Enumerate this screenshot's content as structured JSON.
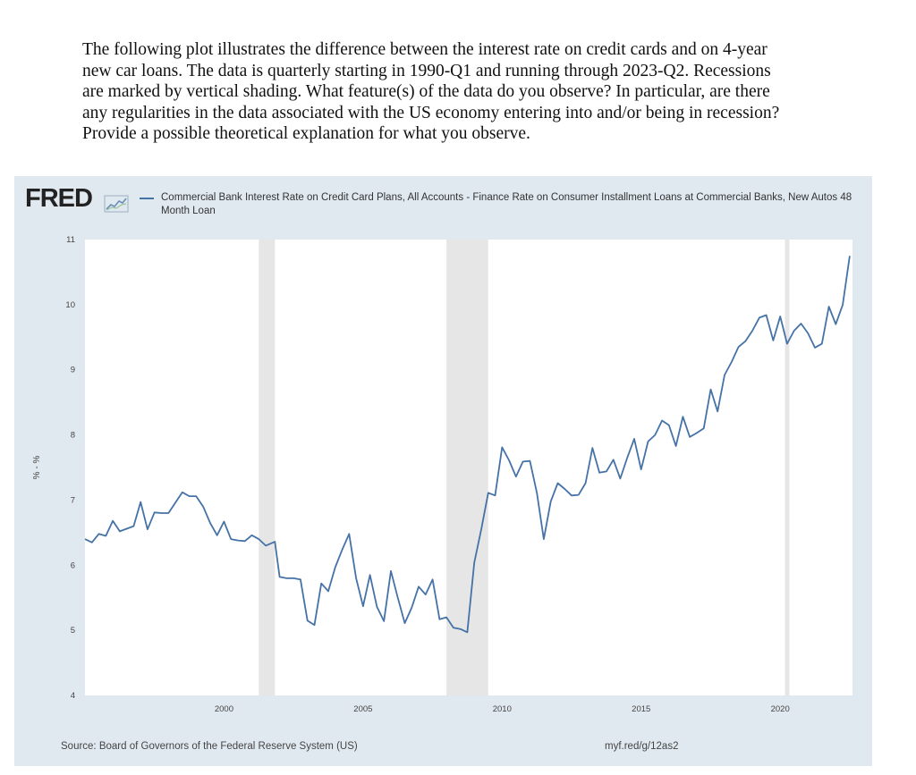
{
  "question": {
    "lines": [
      "The following plot illustrates the difference between the interest rate on credit cards and on 4-year",
      "new car loans.  The data is quarterly starting in 1990-Q1 and running through 2023-Q2.  Recessions",
      "are marked by vertical shading.  What feature(s) of the data do you observe?  In particular, are there",
      "any regularities in the data associated with the US economy entering into and/or being in recession?",
      "Provide a possible theoretical explanation for what you observe."
    ]
  },
  "fred": {
    "logo": "FRED",
    "legend": "Commercial Bank Interest Rate on Credit Card Plans, All Accounts - Finance Rate on Consumer Installment Loans at Commercial Banks, New Autos 48 Month Loan",
    "source": "Source: Board of Governors of the Federal Reserve System (US)",
    "link": "myf.red/g/12as2",
    "colors": {
      "line": "#4572a7",
      "panel": "#e1e9f0",
      "recession": "#e6e6e6",
      "plot_bg": "#ffffff"
    }
  },
  "chart_data": {
    "type": "line",
    "title": "",
    "xlabel": "",
    "ylabel": "% - %",
    "xlim": [
      1995.0,
      2022.6
    ],
    "ylim": [
      4,
      11
    ],
    "yticks": [
      4,
      5,
      6,
      7,
      8,
      9,
      10,
      11
    ],
    "xticks": [
      2000,
      2005,
      2010,
      2015,
      2020
    ],
    "grid": false,
    "legend_position": "top",
    "recessions": [
      [
        2001.25,
        2001.83
      ],
      [
        2008.0,
        2009.5
      ],
      [
        2020.17,
        2020.33
      ]
    ],
    "series": [
      {
        "name": "Commercial Bank Interest Rate on Credit Card Plans, All Accounts - Finance Rate on Consumer Installment Loans at Commercial Banks, New Autos 48 Month Loan",
        "points": [
          [
            1995.0,
            6.4
          ],
          [
            1995.25,
            6.35
          ],
          [
            1995.5,
            6.48
          ],
          [
            1995.75,
            6.45
          ],
          [
            1996.0,
            6.68
          ],
          [
            1996.25,
            6.52
          ],
          [
            1996.5,
            6.56
          ],
          [
            1996.75,
            6.6
          ],
          [
            1997.0,
            6.97
          ],
          [
            1997.25,
            6.55
          ],
          [
            1997.5,
            6.81
          ],
          [
            1997.75,
            6.8
          ],
          [
            1998.0,
            6.8
          ],
          [
            1998.5,
            7.12
          ],
          [
            1998.75,
            7.06
          ],
          [
            1999.0,
            7.06
          ],
          [
            1999.25,
            6.9
          ],
          [
            1999.5,
            6.65
          ],
          [
            1999.75,
            6.46
          ],
          [
            2000.0,
            6.67
          ],
          [
            2000.25,
            6.4
          ],
          [
            2000.5,
            6.38
          ],
          [
            2000.75,
            6.37
          ],
          [
            2001.0,
            6.46
          ],
          [
            2001.25,
            6.4
          ],
          [
            2001.5,
            6.3
          ],
          [
            2001.83,
            6.36
          ],
          [
            2002.0,
            5.82
          ],
          [
            2002.25,
            5.8
          ],
          [
            2002.5,
            5.8
          ],
          [
            2002.75,
            5.78
          ],
          [
            2003.0,
            5.15
          ],
          [
            2003.25,
            5.08
          ],
          [
            2003.5,
            5.72
          ],
          [
            2003.75,
            5.6
          ],
          [
            2004.0,
            5.97
          ],
          [
            2004.25,
            6.24
          ],
          [
            2004.5,
            6.48
          ],
          [
            2004.75,
            5.8
          ],
          [
            2005.0,
            5.37
          ],
          [
            2005.25,
            5.85
          ],
          [
            2005.5,
            5.36
          ],
          [
            2005.75,
            5.14
          ],
          [
            2006.0,
            5.91
          ],
          [
            2006.25,
            5.5
          ],
          [
            2006.5,
            5.11
          ],
          [
            2006.75,
            5.35
          ],
          [
            2007.0,
            5.67
          ],
          [
            2007.25,
            5.55
          ],
          [
            2007.5,
            5.78
          ],
          [
            2007.75,
            5.17
          ],
          [
            2008.0,
            5.2
          ],
          [
            2008.25,
            5.04
          ],
          [
            2008.5,
            5.02
          ],
          [
            2008.75,
            4.97
          ],
          [
            2009.0,
            6.04
          ],
          [
            2009.25,
            6.55
          ],
          [
            2009.5,
            7.11
          ],
          [
            2009.75,
            7.07
          ],
          [
            2010.0,
            7.81
          ],
          [
            2010.25,
            7.61
          ],
          [
            2010.5,
            7.36
          ],
          [
            2010.75,
            7.59
          ],
          [
            2011.0,
            7.6
          ],
          [
            2011.25,
            7.11
          ],
          [
            2011.5,
            6.4
          ],
          [
            2011.75,
            6.98
          ],
          [
            2012.0,
            7.26
          ],
          [
            2012.25,
            7.17
          ],
          [
            2012.5,
            7.07
          ],
          [
            2012.75,
            7.08
          ],
          [
            2013.0,
            7.26
          ],
          [
            2013.25,
            7.8
          ],
          [
            2013.5,
            7.42
          ],
          [
            2013.75,
            7.44
          ],
          [
            2014.0,
            7.62
          ],
          [
            2014.25,
            7.33
          ],
          [
            2014.5,
            7.65
          ],
          [
            2014.75,
            7.94
          ],
          [
            2015.0,
            7.47
          ],
          [
            2015.25,
            7.9
          ],
          [
            2015.5,
            8.0
          ],
          [
            2015.75,
            8.22
          ],
          [
            2016.0,
            8.15
          ],
          [
            2016.25,
            7.83
          ],
          [
            2016.5,
            8.28
          ],
          [
            2016.75,
            7.97
          ],
          [
            2017.0,
            8.03
          ],
          [
            2017.25,
            8.1
          ],
          [
            2017.5,
            8.7
          ],
          [
            2017.75,
            8.36
          ],
          [
            2018.0,
            8.92
          ],
          [
            2018.25,
            9.12
          ],
          [
            2018.5,
            9.35
          ],
          [
            2018.75,
            9.44
          ],
          [
            2019.0,
            9.6
          ],
          [
            2019.25,
            9.8
          ],
          [
            2019.5,
            9.84
          ],
          [
            2019.75,
            9.45
          ],
          [
            2020.0,
            9.82
          ],
          [
            2020.25,
            9.4
          ],
          [
            2020.5,
            9.6
          ],
          [
            2020.75,
            9.71
          ],
          [
            2021.0,
            9.56
          ],
          [
            2021.25,
            9.34
          ],
          [
            2021.5,
            9.4
          ],
          [
            2021.75,
            9.97
          ],
          [
            2022.0,
            9.7
          ],
          [
            2022.25,
            10.0
          ],
          [
            2022.5,
            10.75
          ]
        ]
      }
    ]
  }
}
